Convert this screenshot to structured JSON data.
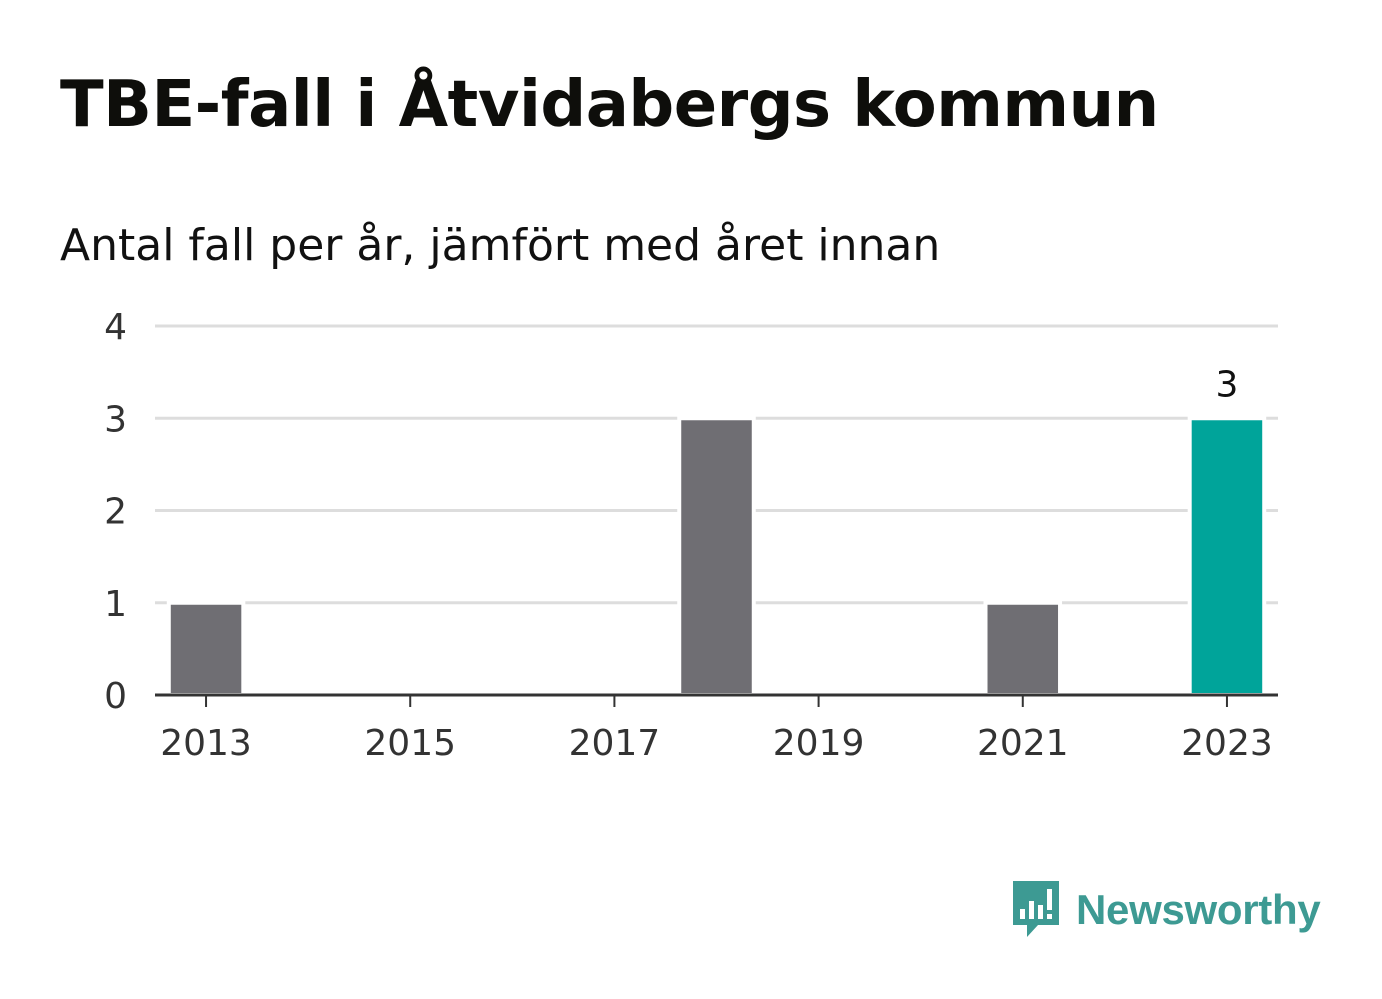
{
  "title": "TBE-fall i Åtvidabergs kommun",
  "subtitle": "Antal fall per år, jämfört med året innan",
  "brand": "Newsworthy",
  "colors": {
    "bar": "#6f6e73",
    "highlight": "#00a49a",
    "grid": "#dddddd",
    "axis": "#333333",
    "logo": "#3d9a93"
  },
  "chart_data": {
    "type": "bar",
    "x": [
      2013,
      2014,
      2015,
      2016,
      2017,
      2018,
      2019,
      2020,
      2021,
      2022,
      2023
    ],
    "values": [
      1,
      0,
      0,
      0,
      0,
      3,
      0,
      0,
      1,
      0,
      3
    ],
    "highlight_index": 10,
    "data_labels": [
      {
        "index": 10,
        "text": "3"
      }
    ],
    "x_ticks": [
      "2013",
      "2015",
      "2017",
      "2019",
      "2021",
      "2023"
    ],
    "y_ticks": [
      "0",
      "1",
      "2",
      "3",
      "4"
    ],
    "ylim": [
      0,
      4
    ],
    "grid": true,
    "title": "TBE-fall i Åtvidabergs kommun",
    "subtitle": "Antal fall per år, jämfört med året innan",
    "xlabel": "",
    "ylabel": ""
  }
}
